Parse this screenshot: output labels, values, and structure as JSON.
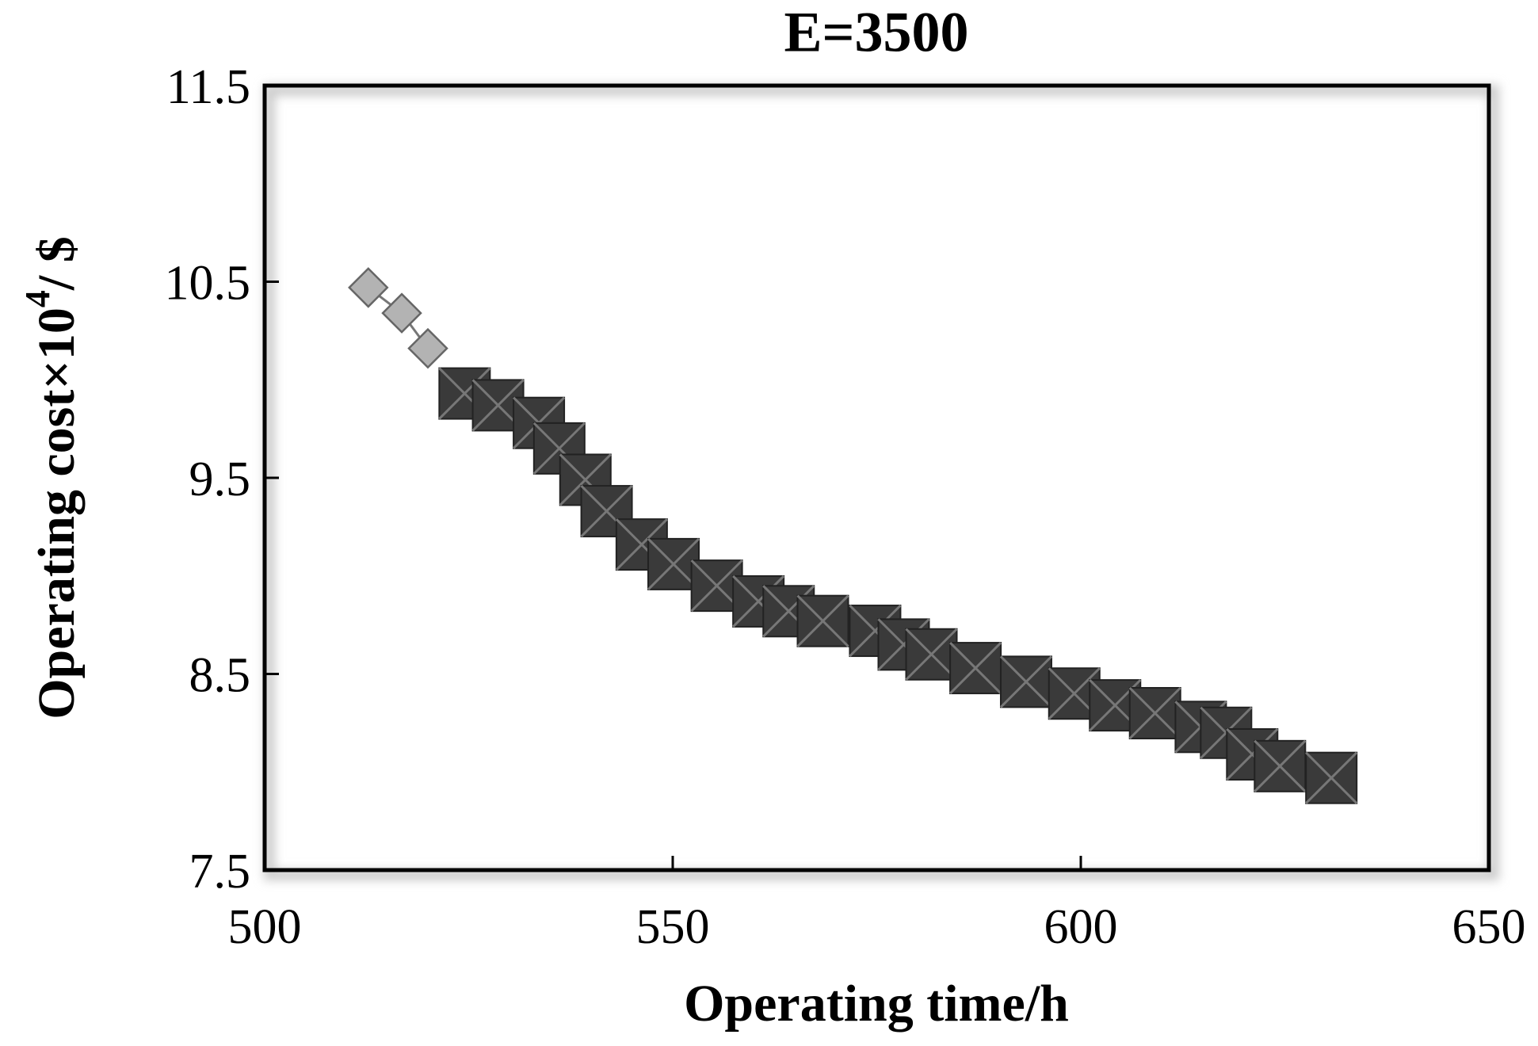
{
  "chart_data": {
    "type": "scatter",
    "title": "E=3500",
    "xlabel": "Operating time/h",
    "ylabel": {
      "text": "Operating cost×10",
      "sup": "4",
      "unit": "/ $"
    },
    "xlim": [
      500,
      650
    ],
    "xticks": [
      500,
      550,
      600,
      650
    ],
    "ylim": [
      7.5,
      11.5
    ],
    "yticks": [
      7.5,
      8.5,
      9.5,
      10.5,
      11.5
    ],
    "line": true,
    "series": [
      {
        "color": "#b3b3b3",
        "marker": "diamond",
        "x": [
          512.7,
          516.8,
          520.0
        ],
        "values": [
          10.47,
          10.34,
          10.16
        ]
      },
      {
        "color": "#3a3a3a",
        "marker": "square-x",
        "x": [
          524.5,
          528.6,
          533.6,
          536.1,
          539.3,
          541.9,
          546.2,
          550.1,
          555.4,
          560.5,
          564.2,
          568.4,
          574.8,
          578.3,
          581.7,
          587.1,
          593.3,
          599.2,
          604.2,
          609.1,
          614.7,
          617.8,
          621.0,
          624.4,
          630.7
        ],
        "values": [
          9.93,
          9.87,
          9.78,
          9.65,
          9.49,
          9.33,
          9.16,
          9.06,
          8.95,
          8.87,
          8.82,
          8.77,
          8.72,
          8.65,
          8.6,
          8.53,
          8.46,
          8.4,
          8.34,
          8.3,
          8.23,
          8.2,
          8.09,
          8.03,
          7.97
        ]
      }
    ]
  }
}
